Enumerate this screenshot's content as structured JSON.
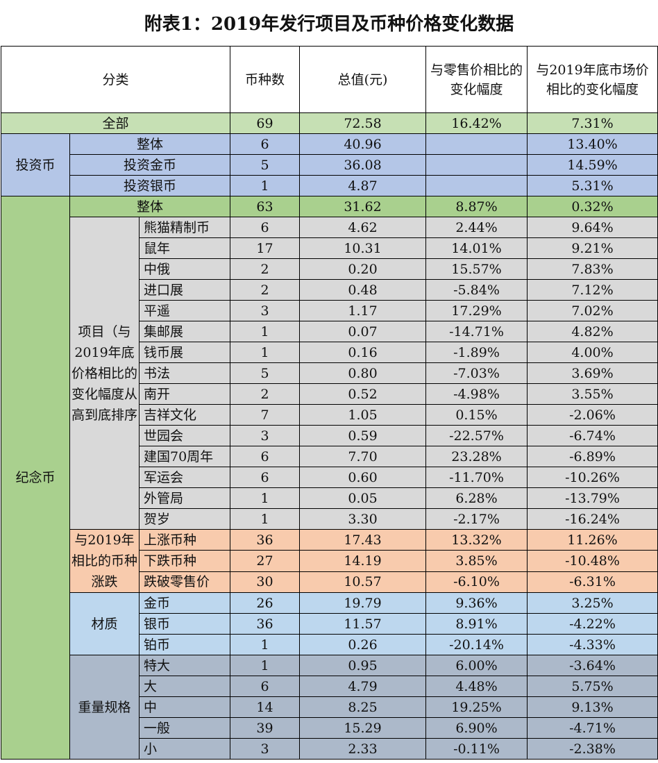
{
  "title": "附表1：2019年发行项目及币种价格变化数据",
  "headers": {
    "category": "分类",
    "count": "币种数",
    "total": "总值(元)",
    "retail_change": "与零售价相比的变化幅度",
    "market_change": "与2019年底市场价相比的变化幅度"
  },
  "all": {
    "label": "全部",
    "count": "69",
    "total": "72.58",
    "retail": "16.42%",
    "market": "7.31%"
  },
  "investment": {
    "group": "投资币",
    "rows": [
      {
        "label": "整体",
        "count": "6",
        "total": "40.96",
        "retail": "",
        "market": "13.40%"
      },
      {
        "label": "投资金币",
        "count": "5",
        "total": "36.08",
        "retail": "",
        "market": "14.59%"
      },
      {
        "label": "投资银币",
        "count": "1",
        "total": "4.87",
        "retail": "",
        "market": "5.31%"
      }
    ]
  },
  "commemorative": {
    "group": "纪念币",
    "overall": {
      "label": "整体",
      "count": "63",
      "total": "31.62",
      "retail": "8.87%",
      "market": "0.32%"
    },
    "projects": {
      "group": "项目（与2019年底价格相比的变化幅度从高到底排序",
      "rows": [
        {
          "label": "熊猫精制币",
          "count": "6",
          "total": "4.62",
          "retail": "2.44%",
          "market": "9.64%"
        },
        {
          "label": "鼠年",
          "count": "17",
          "total": "10.31",
          "retail": "14.01%",
          "market": "9.21%"
        },
        {
          "label": "中俄",
          "count": "2",
          "total": "0.20",
          "retail": "15.57%",
          "market": "7.83%"
        },
        {
          "label": "进口展",
          "count": "2",
          "total": "0.48",
          "retail": "-5.84%",
          "market": "7.12%"
        },
        {
          "label": "平遥",
          "count": "3",
          "total": "1.17",
          "retail": "17.29%",
          "market": "7.02%"
        },
        {
          "label": "集邮展",
          "count": "1",
          "total": "0.07",
          "retail": "-14.71%",
          "market": "4.82%"
        },
        {
          "label": "钱币展",
          "count": "1",
          "total": "0.16",
          "retail": "-1.89%",
          "market": "4.00%"
        },
        {
          "label": "书法",
          "count": "5",
          "total": "0.80",
          "retail": "-7.03%",
          "market": "3.69%"
        },
        {
          "label": "南开",
          "count": "2",
          "total": "0.52",
          "retail": "-4.98%",
          "market": "3.55%"
        },
        {
          "label": "吉祥文化",
          "count": "7",
          "total": "1.05",
          "retail": "0.15%",
          "market": "-2.06%"
        },
        {
          "label": "世园会",
          "count": "3",
          "total": "0.59",
          "retail": "-22.57%",
          "market": "-6.74%"
        },
        {
          "label": "建国70周年",
          "count": "6",
          "total": "7.70",
          "retail": "23.28%",
          "market": "-6.89%"
        },
        {
          "label": "军运会",
          "count": "6",
          "total": "0.60",
          "retail": "-11.70%",
          "market": "-10.26%"
        },
        {
          "label": "外管局",
          "count": "1",
          "total": "0.05",
          "retail": "6.28%",
          "market": "-13.79%"
        },
        {
          "label": "贺岁",
          "count": "1",
          "total": "3.30",
          "retail": "-2.17%",
          "market": "-16.24%"
        }
      ]
    },
    "trend": {
      "group": "与2019年相比的币种涨跌",
      "rows": [
        {
          "label": "上涨币种",
          "count": "36",
          "total": "17.43",
          "retail": "13.32%",
          "market": "11.26%"
        },
        {
          "label": "下跌币种",
          "count": "27",
          "total": "14.19",
          "retail": "3.85%",
          "market": "-10.48%"
        },
        {
          "label": "跌破零售价",
          "count": "30",
          "total": "10.57",
          "retail": "-6.10%",
          "market": "-6.31%"
        }
      ]
    },
    "material": {
      "group": "材质",
      "rows": [
        {
          "label": "金币",
          "count": "26",
          "total": "19.79",
          "retail": "9.36%",
          "market": "3.25%"
        },
        {
          "label": "银币",
          "count": "36",
          "total": "11.57",
          "retail": "8.91%",
          "market": "-4.22%"
        },
        {
          "label": "铂币",
          "count": "1",
          "total": "0.26",
          "retail": "-20.14%",
          "market": "-4.33%"
        }
      ]
    },
    "weight": {
      "group": "重量规格",
      "rows": [
        {
          "label": "特大",
          "count": "1",
          "total": "0.95",
          "retail": "6.00%",
          "market": "-3.64%"
        },
        {
          "label": "大",
          "count": "6",
          "total": "4.79",
          "retail": "4.48%",
          "market": "5.75%"
        },
        {
          "label": "中",
          "count": "14",
          "total": "8.25",
          "retail": "19.25%",
          "market": "9.13%"
        },
        {
          "label": "一般",
          "count": "39",
          "total": "15.29",
          "retail": "6.90%",
          "market": "-4.71%"
        },
        {
          "label": "小",
          "count": "3",
          "total": "2.33",
          "retail": "-0.11%",
          "market": "-2.38%"
        }
      ]
    }
  }
}
